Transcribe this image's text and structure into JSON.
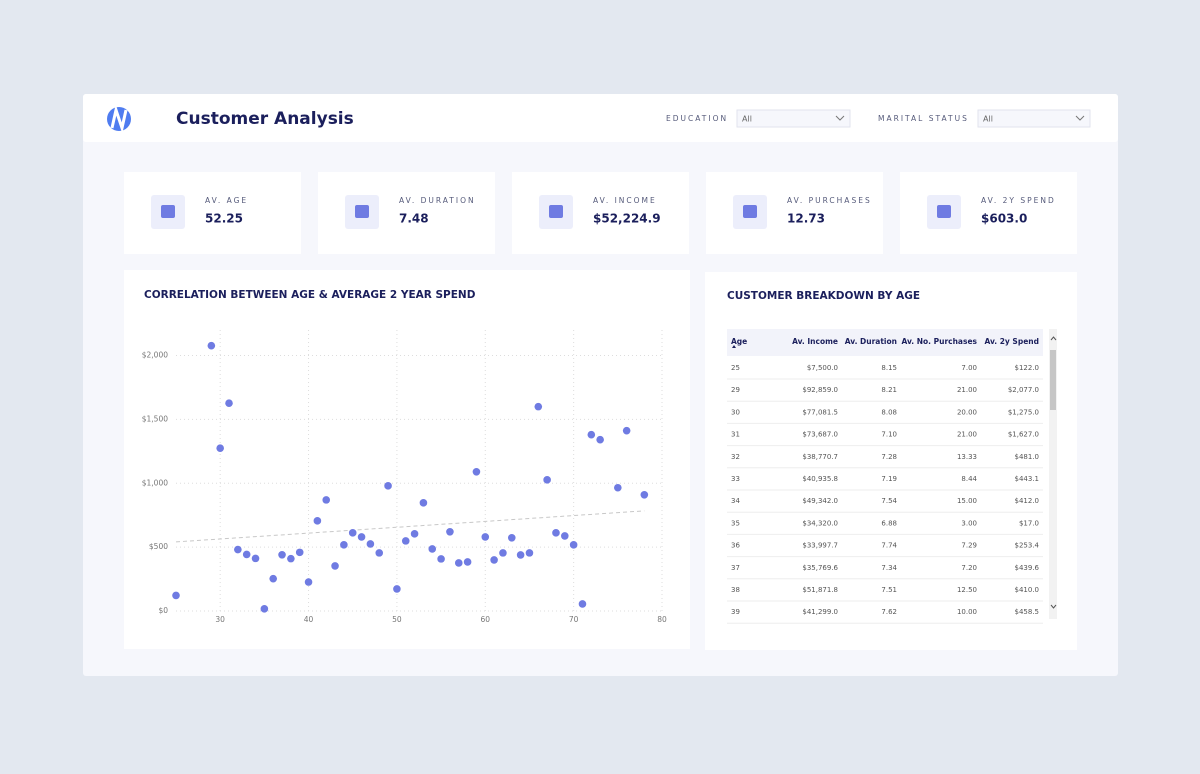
{
  "header": {
    "title": "Customer Analysis",
    "filters": [
      {
        "label": "EDUCATION",
        "value": "All"
      },
      {
        "label": "MARITAL STATUS",
        "value": "All"
      }
    ]
  },
  "kpis": [
    {
      "label": "AV. AGE",
      "value": "52.25"
    },
    {
      "label": "AV. DURATION",
      "value": "7.48"
    },
    {
      "label": "AV. INCOME",
      "value": "$52,224.9"
    },
    {
      "label": "AV. PURCHASES",
      "value": "12.73"
    },
    {
      "label": "AV. 2Y SPEND",
      "value": "$603.0"
    }
  ],
  "chart_data": {
    "type": "scatter",
    "title": "CORRELATION BETWEEN AGE & AVERAGE 2 YEAR SPEND",
    "color": "#6f7be2",
    "grid": true,
    "x": [
      25,
      29,
      30,
      31,
      32,
      33,
      34,
      35,
      36,
      37,
      38,
      39,
      40,
      41,
      42,
      43,
      44,
      45,
      46,
      47,
      48,
      49,
      50,
      51,
      52,
      53,
      54,
      55,
      56,
      57,
      58,
      59,
      60,
      61,
      62,
      63,
      64,
      65,
      66,
      67,
      68,
      69,
      70,
      71,
      72,
      73,
      75,
      76,
      78
    ],
    "values": [
      122,
      2077,
      1275,
      1627,
      481,
      443,
      412,
      17,
      253,
      440,
      410,
      459,
      227,
      706,
      870,
      353,
      518,
      612,
      580,
      525,
      455,
      980,
      173,
      549,
      604,
      847,
      486,
      408,
      620,
      376,
      384,
      1090,
      580,
      400,
      455,
      573,
      439,
      455,
      1600,
      1027,
      612,
      588,
      518,
      55,
      1380,
      1341,
      965,
      1412,
      910
    ],
    "trend": {
      "x": [
        25,
        78
      ],
      "values": [
        541,
        784
      ]
    },
    "xlim": [
      25,
      80
    ],
    "xticks": [
      30,
      40,
      50,
      60,
      70,
      80
    ],
    "ylim": [
      0,
      2200
    ],
    "yticks": [
      {
        "value": 0,
        "label": "$0"
      },
      {
        "value": 500,
        "label": "$500"
      },
      {
        "value": 1000,
        "label": "$1,000"
      },
      {
        "value": 1500,
        "label": "$1,500"
      },
      {
        "value": 2000,
        "label": "$2,000"
      }
    ]
  },
  "table": {
    "title": "CUSTOMER BREAKDOWN BY AGE",
    "columns": [
      "Age",
      "Av. Income",
      "Av. Duration",
      "Av. No. Purchases",
      "Av. 2y Spend"
    ],
    "rows": [
      [
        "25",
        "$7,500.0",
        "8.15",
        "7.00",
        "$122.0"
      ],
      [
        "29",
        "$92,859.0",
        "8.21",
        "21.00",
        "$2,077.0"
      ],
      [
        "30",
        "$77,081.5",
        "8.08",
        "20.00",
        "$1,275.0"
      ],
      [
        "31",
        "$73,687.0",
        "7.10",
        "21.00",
        "$1,627.0"
      ],
      [
        "32",
        "$38,770.7",
        "7.28",
        "13.33",
        "$481.0"
      ],
      [
        "33",
        "$40,935.8",
        "7.19",
        "8.44",
        "$443.1"
      ],
      [
        "34",
        "$49,342.0",
        "7.54",
        "15.00",
        "$412.0"
      ],
      [
        "35",
        "$34,320.0",
        "6.88",
        "3.00",
        "$17.0"
      ],
      [
        "36",
        "$33,997.7",
        "7.74",
        "7.29",
        "$253.4"
      ],
      [
        "37",
        "$35,769.6",
        "7.34",
        "7.20",
        "$439.6"
      ],
      [
        "38",
        "$51,871.8",
        "7.51",
        "12.50",
        "$410.0"
      ],
      [
        "39",
        "$41,299.0",
        "7.62",
        "10.00",
        "$458.5"
      ]
    ]
  }
}
